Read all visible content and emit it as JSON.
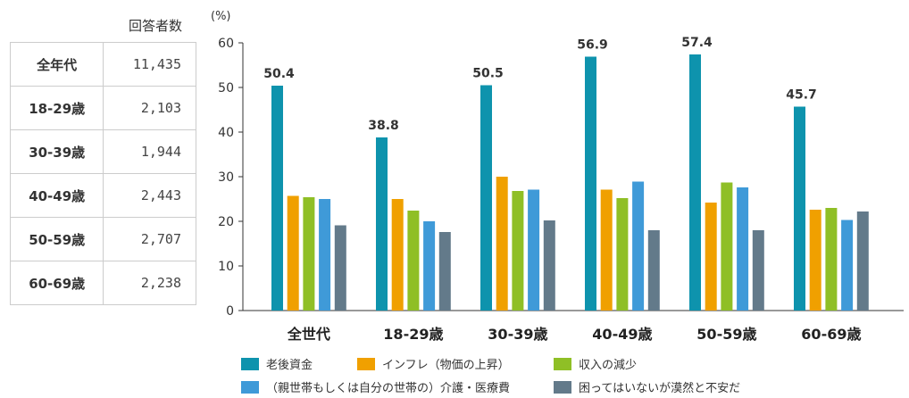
{
  "respondents": {
    "header": "回答者数",
    "rows": [
      {
        "label": "全年代",
        "value": "11,435"
      },
      {
        "label": "18-29歳",
        "value": "2,103"
      },
      {
        "label": "30-39歳",
        "value": "1,944"
      },
      {
        "label": "40-49歳",
        "value": "2,443"
      },
      {
        "label": "50-59歳",
        "value": "2,707"
      },
      {
        "label": "60-69歳",
        "value": "2,238"
      }
    ]
  },
  "chart_data": {
    "type": "bar",
    "unit_label": "(%)",
    "categories": [
      "全世代",
      "18-29歳",
      "30-39歳",
      "40-49歳",
      "50-59歳",
      "60-69歳"
    ],
    "ylim": [
      0,
      60
    ],
    "yticks": [
      0,
      10,
      20,
      30,
      40,
      50,
      60
    ],
    "grid": false,
    "legend_position": "bottom",
    "series": [
      {
        "name": "老後資金",
        "color": "#0e93ad",
        "values": [
          50.4,
          38.8,
          50.5,
          56.9,
          57.4,
          45.7
        ],
        "labeled": true
      },
      {
        "name": "インフレ（物価の上昇）",
        "color": "#f0a000",
        "values": [
          25.7,
          25.0,
          30.0,
          27.1,
          24.2,
          22.6
        ],
        "labeled": false
      },
      {
        "name": "収入の減少",
        "color": "#8fbf26",
        "values": [
          25.4,
          22.4,
          26.8,
          25.2,
          28.7,
          23.0
        ],
        "labeled": false
      },
      {
        "name": "（親世帯もしくは自分の世帯の）介護・医療費",
        "color": "#3f9ad8",
        "values": [
          25.0,
          20.0,
          27.1,
          28.9,
          27.6,
          20.3
        ],
        "labeled": false
      },
      {
        "name": "困ってはいないが漠然と不安だ",
        "color": "#637a8a",
        "values": [
          19.1,
          17.6,
          20.2,
          18.0,
          18.0,
          22.2
        ],
        "labeled": false
      }
    ]
  }
}
